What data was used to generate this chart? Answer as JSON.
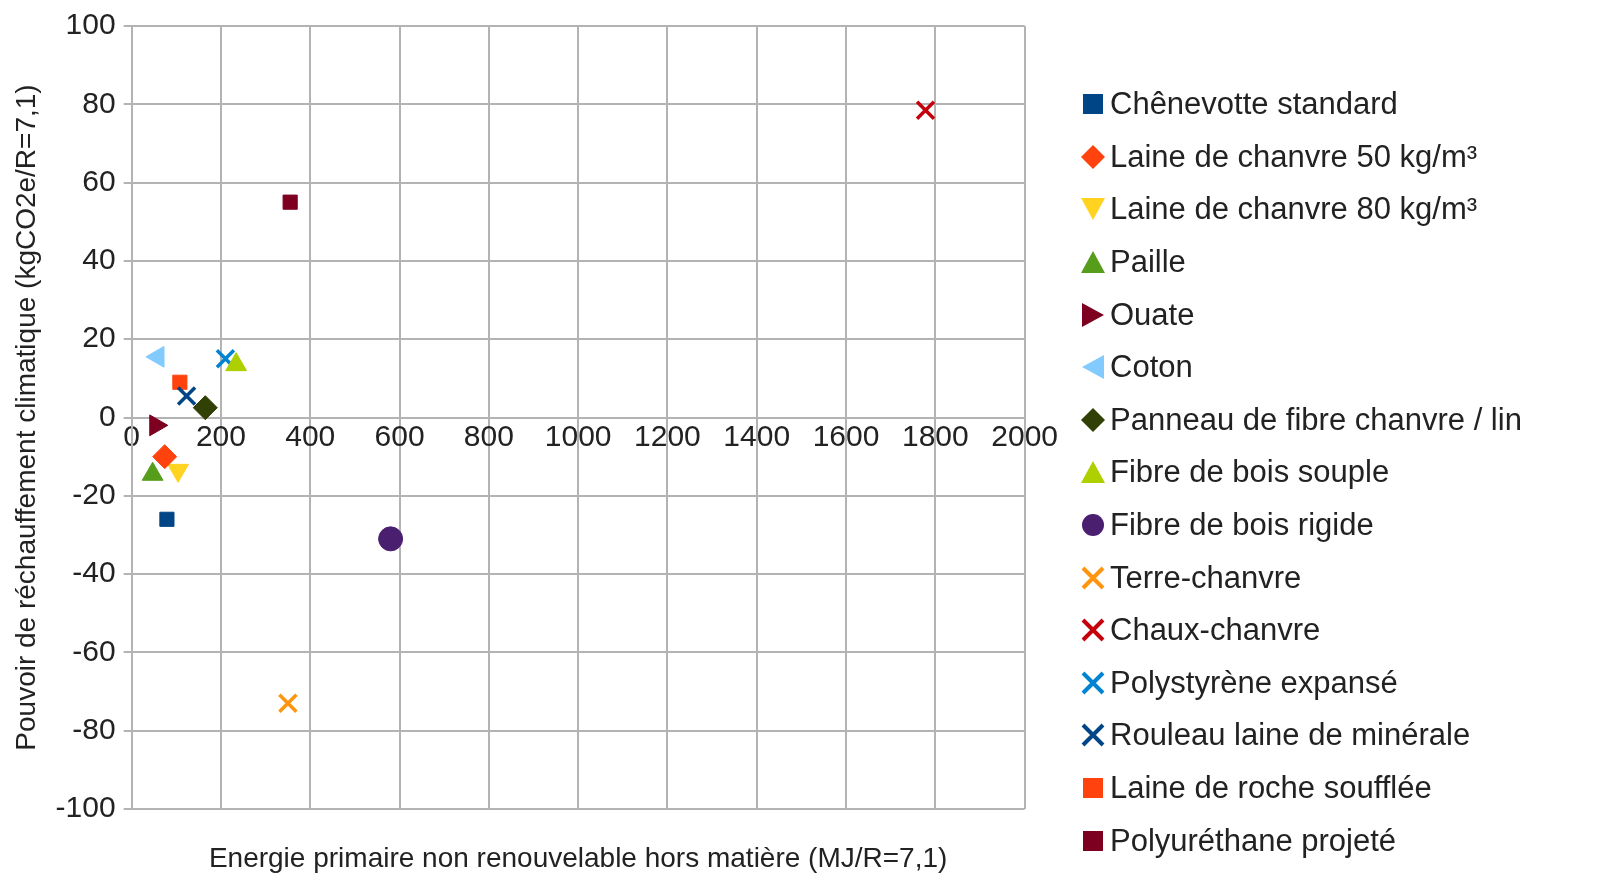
{
  "chart_data": {
    "type": "scatter",
    "xlabel": "Energie primaire non renouvelable hors matière (MJ/R=7,1)",
    "ylabel": "Pouvoir de réchauffement climatique (kgCO2e/R=7,1)",
    "xlim": [
      0,
      2000
    ],
    "xticks": [
      0,
      200,
      400,
      600,
      800,
      1000,
      1200,
      1400,
      1600,
      1800,
      2000
    ],
    "ylim": [
      -100,
      100
    ],
    "yticks": [
      -100,
      -80,
      -60,
      -40,
      -20,
      0,
      20,
      40,
      60,
      80,
      100
    ],
    "grid": true,
    "legend": "right",
    "series": [
      {
        "name": "Chênevotte standard",
        "color": "#004586",
        "marker": "square",
        "x": [
          79
        ],
        "values": [
          -26
        ]
      },
      {
        "name": "Laine de chanvre 50 kg/m³",
        "color": "#ff420e",
        "marker": "diamond",
        "x": [
          74
        ],
        "values": [
          -10
        ]
      },
      {
        "name": "Laine de chanvre 80 kg/m³",
        "color": "#ffd320",
        "marker": "triangle-down",
        "x": [
          104
        ],
        "values": [
          -13.5
        ]
      },
      {
        "name": "Paille",
        "color": "#579d1c",
        "marker": "triangle",
        "x": [
          47
        ],
        "values": [
          -14.5
        ]
      },
      {
        "name": "Ouate",
        "color": "#7e0021",
        "marker": "triangle-right",
        "x": [
          54
        ],
        "values": [
          -2
        ]
      },
      {
        "name": "Coton",
        "color": "#83caff",
        "marker": "triangle-left",
        "x": [
          59
        ],
        "values": [
          15.5
        ]
      },
      {
        "name": "Panneau de fibre chanvre / lin",
        "color": "#314004",
        "marker": "diamond",
        "x": [
          165
        ],
        "values": [
          2.5
        ]
      },
      {
        "name": "Fibre de bois souple",
        "color": "#aecf00",
        "marker": "triangle",
        "x": [
          234
        ],
        "values": [
          13.5
        ]
      },
      {
        "name": "Fibre de bois rigide",
        "color": "#4b1f6f",
        "marker": "circle",
        "x": [
          580
        ],
        "values": [
          -31
        ]
      },
      {
        "name": "Terre-chanvre",
        "color": "#ff950e",
        "marker": "cross",
        "x": [
          350
        ],
        "values": [
          -73
        ]
      },
      {
        "name": "Chaux-chanvre",
        "color": "#c5000b",
        "marker": "x",
        "x": [
          1778
        ],
        "values": [
          78.5
        ]
      },
      {
        "name": "Polystyrène expansé",
        "color": "#0084d1",
        "marker": "cross",
        "x": [
          210
        ],
        "values": [
          15
        ]
      },
      {
        "name": "Rouleau laine de minérale",
        "color": "#004586",
        "marker": "cross",
        "x": [
          123
        ],
        "values": [
          5.5
        ]
      },
      {
        "name": "Laine de roche soufflée",
        "color": "#ff420e",
        "marker": "square",
        "x": [
          108
        ],
        "values": [
          9
        ]
      },
      {
        "name": "Polyuréthane projeté",
        "color": "#7e0021",
        "marker": "square",
        "x": [
          355
        ],
        "values": [
          55
        ]
      }
    ]
  }
}
